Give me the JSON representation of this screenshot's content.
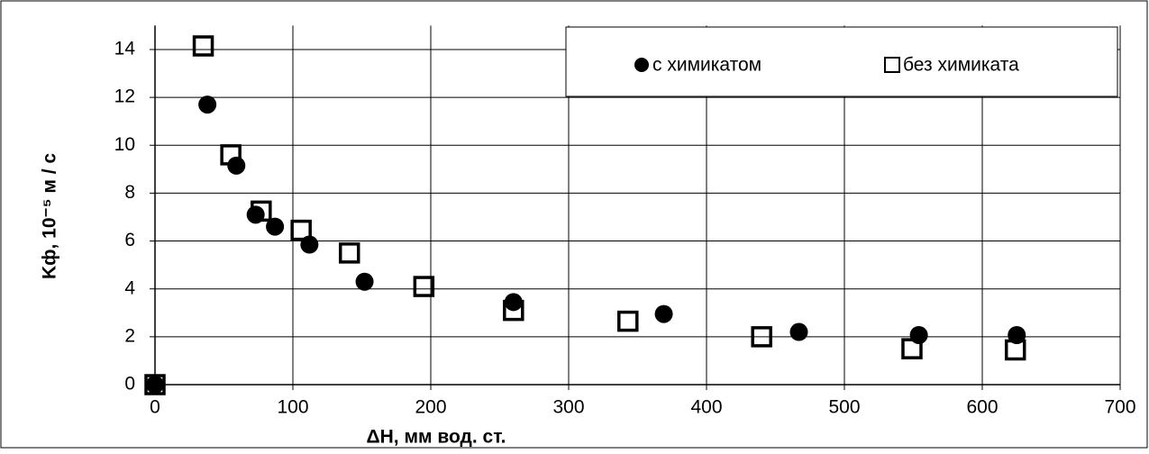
{
  "chart_data": {
    "type": "scatter",
    "x_label": "ΔH, мм вод. ст.",
    "y_label": "Kф, 10⁻⁵ м / с",
    "xlim": [
      0,
      700
    ],
    "xticks": [
      0,
      100,
      200,
      300,
      400,
      500,
      600,
      700
    ],
    "ylim": [
      0,
      15
    ],
    "yticks": [
      0,
      2,
      4,
      6,
      8,
      10,
      12,
      14
    ],
    "grid": true,
    "legend": "upper right",
    "series": [
      {
        "name": "с химикатом",
        "color": "#000000",
        "marker": "circle",
        "x": [
          0,
          38,
          59,
          73,
          87,
          112,
          152,
          260,
          369,
          467,
          554,
          625
        ],
        "values": [
          0,
          11.7,
          9.15,
          7.1,
          6.6,
          5.85,
          4.3,
          3.45,
          2.95,
          2.2,
          2.07,
          2.07
        ]
      },
      {
        "name": "без химиката",
        "color": "#000000",
        "marker": "square",
        "x": [
          0,
          35,
          55,
          77,
          106,
          141,
          195,
          260,
          343,
          440,
          549,
          624
        ],
        "values": [
          0,
          14.15,
          9.6,
          7.25,
          6.45,
          5.5,
          4.1,
          3.1,
          2.65,
          2.0,
          1.5,
          1.45
        ]
      }
    ]
  }
}
